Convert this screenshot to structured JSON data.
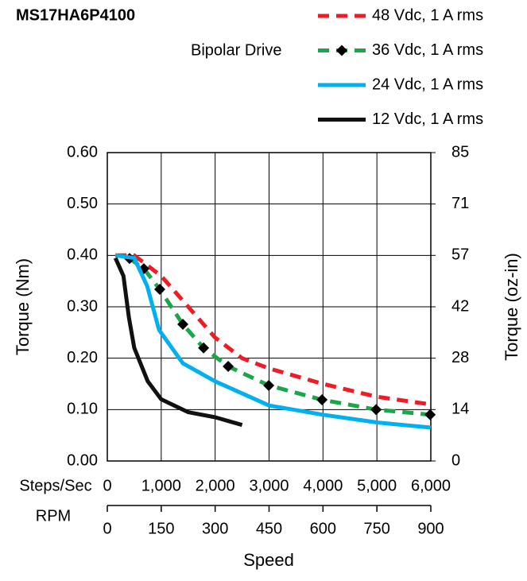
{
  "chart_data": {
    "type": "line",
    "title": "MS17HA6P4100",
    "subtitle": "Bipolar Drive",
    "ylabel": "Torque (Nm)",
    "y2label": "Torque (oz-in)",
    "xlabel": "Speed",
    "xaxis_name": "Steps/Sec",
    "x2axis_name": "RPM",
    "xlim": [
      0,
      6000
    ],
    "xticks": [
      0,
      {
        "value": 1000,
        "label": "1,000"
      },
      {
        "value": 2000,
        "label": "2,000"
      },
      {
        "value": 3000,
        "label": "3,000"
      },
      {
        "value": 4000,
        "label": "4,000"
      },
      {
        "value": 5000,
        "label": "5,000"
      },
      {
        "value": 6000,
        "label": "6,000"
      }
    ],
    "x2lim": [
      0,
      900
    ],
    "x2ticks": [
      0,
      150,
      300,
      450,
      600,
      750,
      900
    ],
    "ylim": [
      0,
      0.6
    ],
    "yticks": [
      {
        "value": 0,
        "label": "0.00"
      },
      {
        "value": 0.1,
        "label": "0.10"
      },
      {
        "value": 0.2,
        "label": "0.20"
      },
      {
        "value": 0.3,
        "label": "0.30"
      },
      {
        "value": 0.4,
        "label": "0.40"
      },
      {
        "value": 0.5,
        "label": "0.50"
      },
      {
        "value": 0.6,
        "label": "0.60"
      }
    ],
    "y2lim": [
      0,
      85
    ],
    "y2ticks": [
      0,
      {
        "value": 14.17,
        "label": "14"
      },
      {
        "value": 28.33,
        "label": "28"
      },
      {
        "value": 42.5,
        "label": "42"
      },
      {
        "value": 56.67,
        "label": "57"
      },
      {
        "value": 70.83,
        "label": "71"
      },
      85
    ],
    "grid": true,
    "legend": "top-right",
    "series": [
      {
        "name": "48 Vdc, 1 A rms",
        "color": "#ee1c25",
        "dash": true,
        "x": [
          150,
          500,
          1000,
          1500,
          2000,
          2500,
          3000,
          4000,
          5000,
          6000
        ],
        "values": [
          0.4,
          0.4,
          0.36,
          0.3,
          0.24,
          0.2,
          0.18,
          0.15,
          0.125,
          0.11
        ]
      },
      {
        "name": "36 Vdc, 1 A rms",
        "color": "#1aa64a",
        "dash": true,
        "marker": "diamond",
        "x": [
          413,
          678,
          973,
          1401,
          1785,
          2242,
          2994,
          3982,
          4985,
          5988
        ],
        "values": [
          0.394,
          0.374,
          0.334,
          0.266,
          0.22,
          0.184,
          0.147,
          0.119,
          0.1,
          0.09
        ]
      },
      {
        "name": "24 Vdc, 1 A rms",
        "color": "#00b0f0",
        "x": [
          150,
          500,
          740,
          960,
          1400,
          2000,
          3000,
          4000,
          5000,
          6000
        ],
        "values": [
          0.4,
          0.395,
          0.34,
          0.255,
          0.19,
          0.155,
          0.108,
          0.09,
          0.075,
          0.065
        ]
      },
      {
        "name": "12 Vdc, 1 A rms",
        "color": "#111111",
        "x": [
          150,
          300,
          400,
          500,
          750,
          1000,
          1500,
          2000,
          2500
        ],
        "values": [
          0.395,
          0.36,
          0.28,
          0.22,
          0.155,
          0.12,
          0.095,
          0.085,
          0.07
        ]
      }
    ]
  }
}
